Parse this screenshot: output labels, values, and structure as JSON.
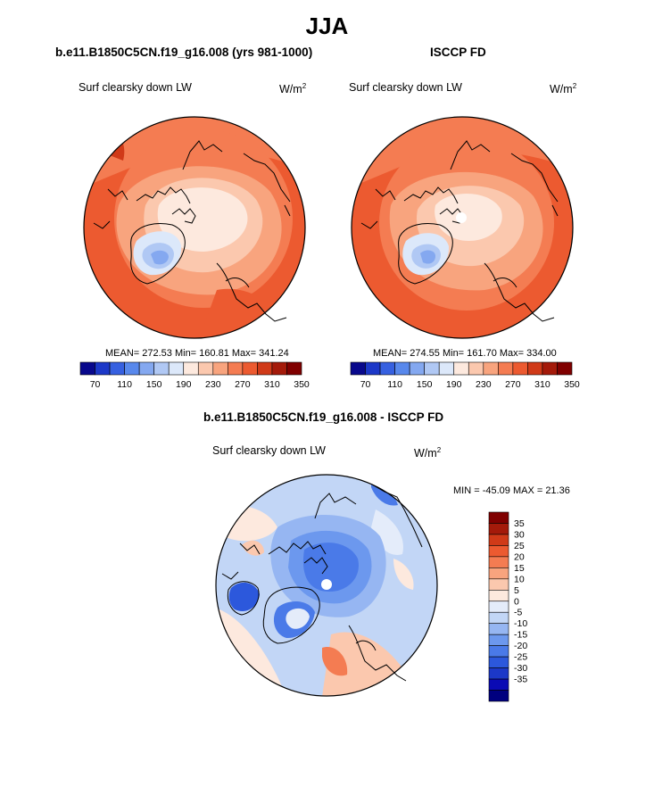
{
  "figure": {
    "title": "JJA"
  },
  "colors": {
    "blue_to_red_14": [
      "#08088c",
      "#1c38c8",
      "#3660e0",
      "#5888ec",
      "#84a8f0",
      "#b0c8f4",
      "#dce8fa",
      "#fde9de",
      "#fbc8ae",
      "#f8a47e",
      "#f47c52",
      "#ec5a30",
      "#d03a18",
      "#a41a0a",
      "#800000"
    ],
    "diff_scale": [
      "#00007f",
      "#0a0ab4",
      "#1c38c8",
      "#2c58dc",
      "#4a7ae8",
      "#6c98ee",
      "#96b6f2",
      "#c2d6f6",
      "#e4ecfa",
      "#fde9de",
      "#fbc8ae",
      "#f8a47e",
      "#f47c52",
      "#ec5a30",
      "#d03a18",
      "#a41a0a",
      "#800000"
    ]
  },
  "chart_data": [
    {
      "type": "heatmap",
      "projection": "polar-stereographic",
      "title": "b.e11.B1850C5CN.f19_g16.008 (yrs 981-1000)",
      "variable": "Surf clearsky down LW",
      "units_base": "W/m",
      "units_exp": "2",
      "stats": {
        "mean": "272.53",
        "min": "160.81",
        "max": "341.24"
      },
      "stats_text": "MEAN= 272.53  Min= 160.81  Max= 341.24",
      "colorbar_ticks": [
        "70",
        "110",
        "150",
        "190",
        "230",
        "270",
        "310",
        "350"
      ],
      "has_missing_pole": false
    },
    {
      "type": "heatmap",
      "projection": "polar-stereographic",
      "title": "ISCCP FD",
      "variable": "Surf clearsky down LW",
      "units_base": "W/m",
      "units_exp": "2",
      "stats": {
        "mean": "274.55",
        "min": "161.70",
        "max": "334.00"
      },
      "stats_text": "MEAN= 274.55  Min= 161.70  Max= 334.00",
      "colorbar_ticks": [
        "70",
        "110",
        "150",
        "190",
        "230",
        "270",
        "310",
        "350"
      ],
      "has_missing_pole": true
    },
    {
      "type": "heatmap",
      "projection": "polar-stereographic",
      "title": "b.e11.B1850C5CN.f19_g16.008 - ISCCP FD",
      "variable": "Surf clearsky down LW",
      "units_base": "W/m",
      "units_exp": "2",
      "stats": {
        "min": "-45.09",
        "max": "21.36"
      },
      "stats_text": "MIN = -45.09 MAX =  21.36",
      "colorbar_ticks": [
        "35",
        "30",
        "25",
        "20",
        "15",
        "10",
        "5",
        "0",
        "-5",
        "-10",
        "-15",
        "-20",
        "-25",
        "-30",
        "-35"
      ],
      "has_missing_pole": true
    }
  ]
}
